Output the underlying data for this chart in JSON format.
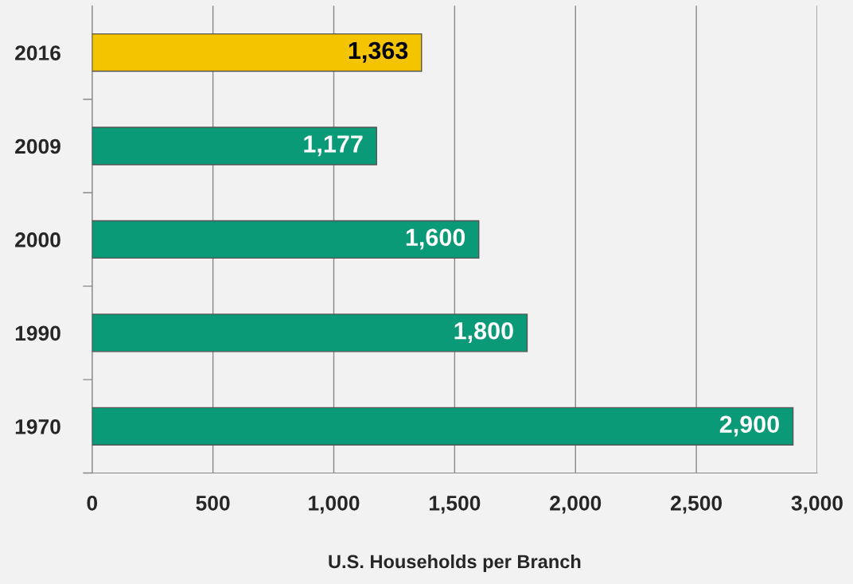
{
  "chart_data": {
    "type": "bar",
    "orientation": "horizontal",
    "categories": [
      "2016",
      "2009",
      "2000",
      "1990",
      "1970"
    ],
    "values": [
      1363,
      1177,
      1600,
      1800,
      2900
    ],
    "colors": [
      "#f5c400",
      "#0b9a78",
      "#0b9a78",
      "#0b9a78",
      "#0b9a78"
    ],
    "value_labels": [
      "1,363",
      "1,177",
      "1,600",
      "1,800",
      "2,900"
    ],
    "xlabel": "U.S. Households per Branch",
    "xlim": [
      0,
      3000
    ],
    "xticks": [
      0,
      500,
      {
        "value": 1000,
        "label": "1,000"
      },
      {
        "value": 1500,
        "label": "1,500"
      },
      {
        "value": 2000,
        "label": "2,000"
      },
      {
        "value": 2500,
        "label": "2,500"
      },
      {
        "value": 3000,
        "label": "3,000"
      }
    ],
    "grid": "x",
    "legend": false
  }
}
